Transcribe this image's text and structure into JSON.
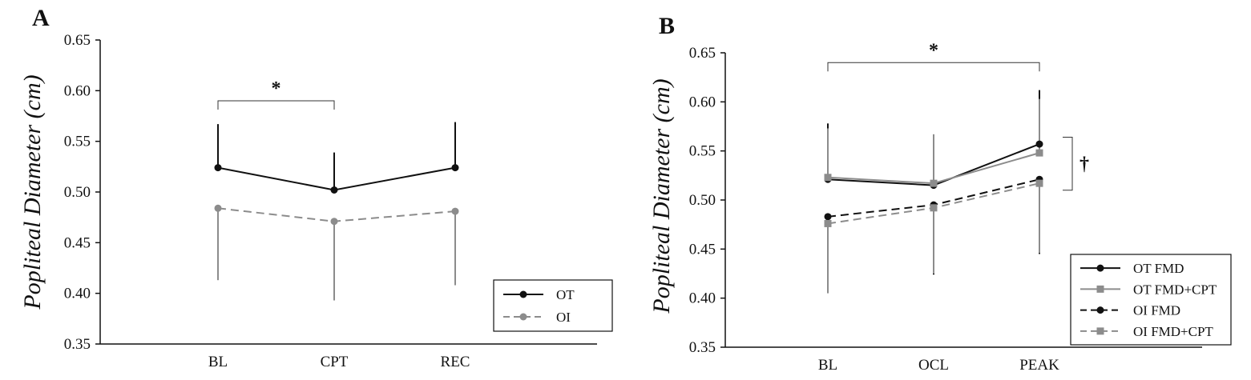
{
  "chart_data": [
    {
      "type": "line",
      "panel_label": "A",
      "ylabel": "Popliteal Diameter (cm)",
      "xlabel": "",
      "ylim": [
        0.35,
        0.65
      ],
      "yticks": [
        "0.35",
        "0.40",
        "0.45",
        "0.50",
        "0.55",
        "0.60",
        "0.65"
      ],
      "categories": [
        "BL",
        "CPT",
        "REC"
      ],
      "series": [
        {
          "name": "OT",
          "values": [
            0.524,
            0.502,
            0.524
          ],
          "error_upper": [
            0.567,
            0.539,
            0.569
          ],
          "color": "#111111",
          "marker": "circle",
          "dashed": false
        },
        {
          "name": "OI",
          "values": [
            0.484,
            0.471,
            0.481
          ],
          "error_lower": [
            0.413,
            0.393,
            0.408
          ],
          "color": "#8c8c8c",
          "marker": "circle",
          "dashed": true
        }
      ],
      "annotations": [
        {
          "text": "*",
          "bracket_from": "BL",
          "bracket_to": "CPT",
          "y": 0.59
        }
      ],
      "legend": "bottom-right"
    },
    {
      "type": "line",
      "panel_label": "B",
      "ylabel": "Popliteal Diameter (cm)",
      "xlabel": "",
      "ylim": [
        0.35,
        0.65
      ],
      "yticks": [
        "0.35",
        "0.40",
        "0.45",
        "0.50",
        "0.55",
        "0.60",
        "0.65"
      ],
      "categories": [
        "BL",
        "OCL",
        "PEAK"
      ],
      "series": [
        {
          "name": "OT FMD",
          "values": [
            0.521,
            0.515,
            0.557
          ],
          "error_upper": [
            0.578,
            null,
            0.612
          ],
          "color": "#111111",
          "marker": "circle",
          "dashed": false
        },
        {
          "name": "OT FMD+CPT",
          "values": [
            0.523,
            0.517,
            0.548
          ],
          "error_upper": [
            0.573,
            0.567,
            0.603
          ],
          "color": "#8c8c8c",
          "marker": "square",
          "dashed": false
        },
        {
          "name": "OI FMD",
          "values": [
            0.483,
            0.495,
            0.521
          ],
          "error_lower": [
            0.405,
            0.424,
            0.445
          ],
          "color": "#111111",
          "marker": "circle",
          "dashed": true
        },
        {
          "name": "OI FMD+CPT",
          "values": [
            0.476,
            0.492,
            0.517
          ],
          "error_lower": [
            0.405,
            0.425,
            0.446
          ],
          "color": "#8c8c8c",
          "marker": "square",
          "dashed": true
        }
      ],
      "annotations": [
        {
          "text": "*",
          "bracket_from": "BL",
          "bracket_to": "PEAK",
          "y": 0.64
        },
        {
          "text": "†",
          "bracket_from_value": 0.564,
          "bracket_to_value": 0.51
        }
      ],
      "legend": "bottom-right"
    }
  ]
}
